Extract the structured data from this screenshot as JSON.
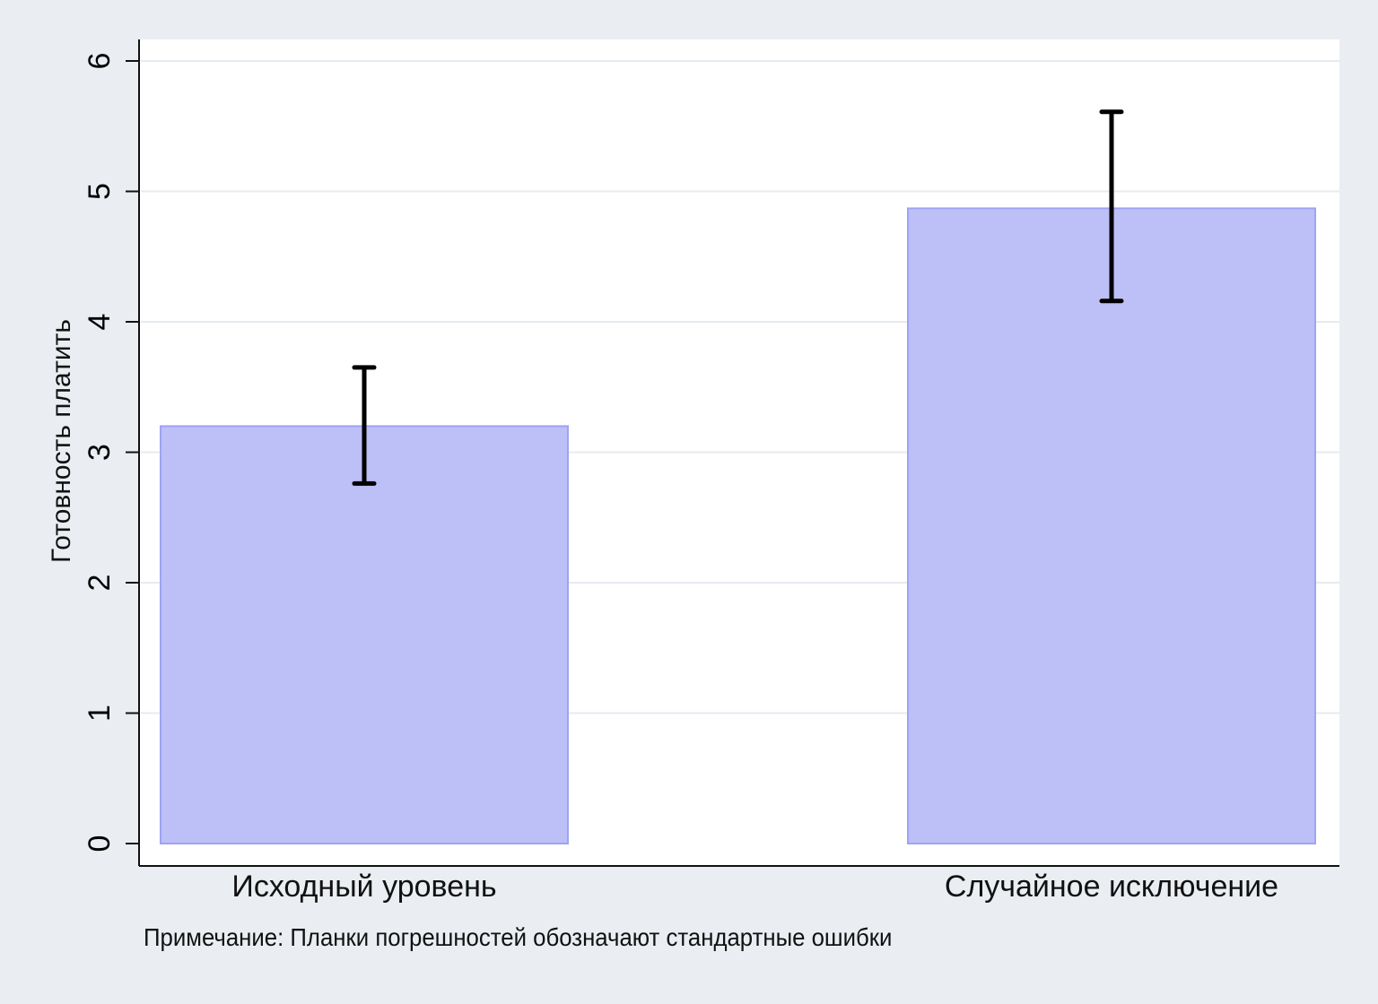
{
  "chart_data": {
    "type": "bar",
    "title": "",
    "xlabel": "",
    "ylabel": "Готовность платить",
    "categories": [
      "Исходный уровень",
      "Случайное исключение"
    ],
    "values": [
      3.2,
      4.87
    ],
    "error_bars": [
      {
        "lower": 2.76,
        "upper": 3.65
      },
      {
        "lower": 4.16,
        "upper": 5.61
      }
    ],
    "ylim": [
      0,
      6
    ],
    "yticks": [
      0,
      1,
      2,
      3,
      4,
      5,
      6
    ],
    "grid": true,
    "legend": null,
    "bar_color": "#bcc0f7",
    "bar_edge_color": "#9ea4f3",
    "note": "Примечание: Планки погрешностей обозначают стандартные ошибки"
  }
}
